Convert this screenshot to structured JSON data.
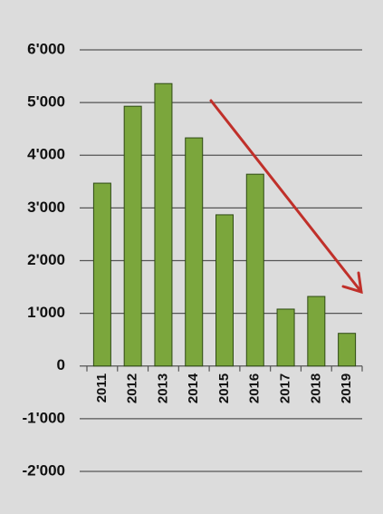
{
  "chart_data": {
    "type": "bar",
    "categories": [
      "2011",
      "2012",
      "2013",
      "2014",
      "2015",
      "2016",
      "2017",
      "2018",
      "2019"
    ],
    "values": [
      3470,
      4930,
      5360,
      4330,
      2870,
      3640,
      1080,
      1320,
      620
    ],
    "color": "#7ba63c",
    "ylim": [
      -2000,
      6000
    ],
    "yticks": [
      {
        "value": -2000,
        "label": "-2'000"
      },
      {
        "value": -1000,
        "label": "-1'000"
      },
      0,
      {
        "value": 1000,
        "label": "1'000"
      },
      {
        "value": 2000,
        "label": "2'000"
      },
      {
        "value": 3000,
        "label": "3'000"
      },
      {
        "value": 4000,
        "label": "4'000"
      },
      {
        "value": 5000,
        "label": "5'000"
      },
      {
        "value": 6000,
        "label": "6'000"
      }
    ],
    "grid": true
  }
}
